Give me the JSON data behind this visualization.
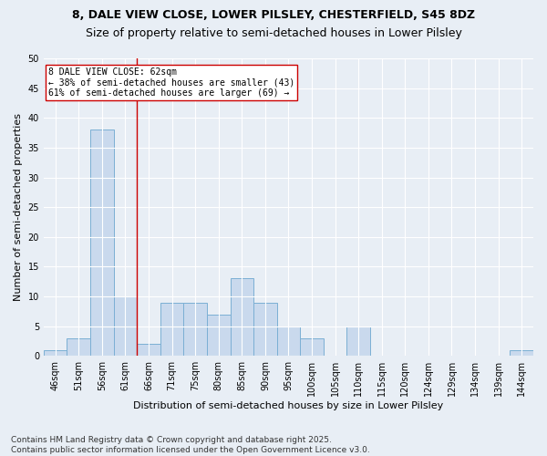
{
  "title1": "8, DALE VIEW CLOSE, LOWER PILSLEY, CHESTERFIELD, S45 8DZ",
  "title2": "Size of property relative to semi-detached houses in Lower Pilsley",
  "xlabel": "Distribution of semi-detached houses by size in Lower Pilsley",
  "ylabel": "Number of semi-detached properties",
  "footer": "Contains HM Land Registry data © Crown copyright and database right 2025.\nContains public sector information licensed under the Open Government Licence v3.0.",
  "categories": [
    "46sqm",
    "51sqm",
    "56sqm",
    "61sqm",
    "66sqm",
    "71sqm",
    "75sqm",
    "80sqm",
    "85sqm",
    "90sqm",
    "95sqm",
    "100sqm",
    "105sqm",
    "110sqm",
    "115sqm",
    "120sqm",
    "124sqm",
    "129sqm",
    "134sqm",
    "139sqm",
    "144sqm"
  ],
  "values": [
    1,
    3,
    38,
    10,
    2,
    9,
    9,
    7,
    13,
    9,
    5,
    3,
    0,
    5,
    0,
    0,
    0,
    0,
    0,
    0,
    1
  ],
  "bar_color": "#c9d9ed",
  "bar_edge_color": "#7bafd4",
  "vline_color": "#cc0000",
  "annotation_title": "8 DALE VIEW CLOSE: 62sqm",
  "annotation_line1": "← 38% of semi-detached houses are smaller (43)",
  "annotation_line2": "61% of semi-detached houses are larger (69) →",
  "annotation_box_color": "#ffffff",
  "annotation_box_edge": "#cc0000",
  "ylim": [
    0,
    50
  ],
  "yticks": [
    0,
    5,
    10,
    15,
    20,
    25,
    30,
    35,
    40,
    45,
    50
  ],
  "background_color": "#e8eef5",
  "plot_background": "#e8eef5",
  "title1_fontsize": 9,
  "title2_fontsize": 9,
  "axis_fontsize": 8,
  "tick_fontsize": 7,
  "annot_fontsize": 7,
  "footer_fontsize": 6.5
}
